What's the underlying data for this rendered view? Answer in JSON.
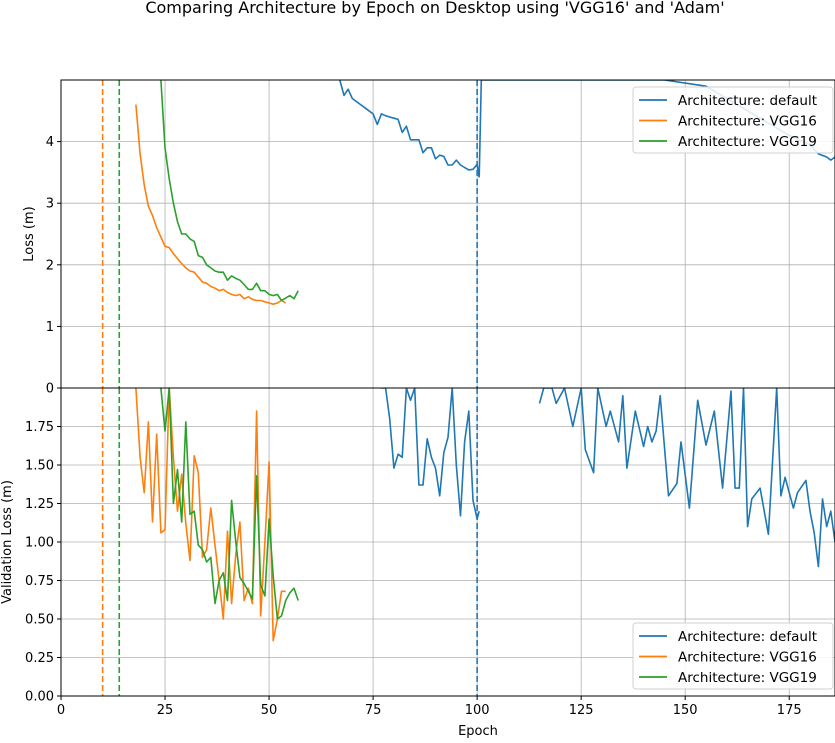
{
  "title": "Comparing Architecture by Epoch on Desktop using 'VGG16' and 'Adam'",
  "chart_data": [
    {
      "panel": "top",
      "type": "line",
      "ylabel": "Loss (m)",
      "xlabel": "",
      "xlim": [
        0,
        186
      ],
      "ylim": [
        0,
        5.0
      ],
      "yticks": [
        0,
        1,
        2,
        3,
        4
      ],
      "xticks": [
        0,
        25,
        50,
        75,
        100,
        125,
        150,
        175
      ],
      "grid": true,
      "legend_position": "top-right",
      "colors": {
        "default": "#1f77b4",
        "VGG16": "#ff7f0e",
        "VGG19": "#2ca02c"
      },
      "series": [
        {
          "name": "Architecture: default",
          "color": "#1f77b4",
          "x": [
            67,
            68,
            69,
            70,
            71,
            72,
            73,
            74,
            75,
            76,
            77,
            78,
            79,
            80,
            81,
            82,
            83,
            84,
            85,
            86,
            87,
            88,
            89,
            90,
            91,
            92,
            93,
            94,
            95,
            96,
            97,
            98,
            99,
            100,
            100.5
          ],
          "y": [
            5.0,
            4.75,
            4.85,
            4.7,
            4.65,
            4.6,
            4.55,
            4.5,
            4.45,
            4.28,
            4.45,
            4.42,
            4.4,
            4.38,
            4.36,
            4.15,
            4.25,
            4.03,
            4.03,
            4.03,
            3.82,
            3.9,
            3.9,
            3.72,
            3.78,
            3.76,
            3.62,
            3.62,
            3.7,
            3.62,
            3.58,
            3.54,
            3.55,
            3.63,
            3.42
          ],
          "x2": [
            100.5,
            101,
            140,
            145,
            150,
            155,
            160,
            165,
            170,
            175,
            180,
            182,
            184,
            185,
            186
          ],
          "y2": [
            3.42,
            5.0,
            5.0,
            5.0,
            4.95,
            4.9,
            4.7,
            4.5,
            4.3,
            4.1,
            3.95,
            3.8,
            3.75,
            3.7,
            3.75
          ]
        },
        {
          "name": "Architecture: VGG16",
          "color": "#ff7f0e",
          "x": [
            18,
            19,
            20,
            21,
            22,
            23,
            24,
            25,
            26,
            27,
            28,
            29,
            30,
            31,
            32,
            33,
            34,
            35,
            36,
            37,
            38,
            39,
            40,
            41,
            42,
            43,
            44,
            45,
            46,
            47,
            48,
            49,
            50,
            51,
            52,
            53,
            54
          ],
          "y": [
            4.6,
            3.8,
            3.3,
            2.95,
            2.8,
            2.6,
            2.45,
            2.3,
            2.28,
            2.18,
            2.1,
            2.02,
            1.95,
            1.9,
            1.88,
            1.8,
            1.72,
            1.7,
            1.65,
            1.62,
            1.58,
            1.6,
            1.55,
            1.52,
            1.5,
            1.52,
            1.45,
            1.48,
            1.44,
            1.42,
            1.42,
            1.4,
            1.38,
            1.36,
            1.38,
            1.42,
            1.38
          ]
        },
        {
          "name": "Architecture: VGG19",
          "color": "#2ca02c",
          "x": [
            24,
            25,
            26,
            27,
            28,
            29,
            30,
            31,
            32,
            33,
            34,
            35,
            36,
            37,
            38,
            39,
            40,
            41,
            42,
            43,
            44,
            45,
            46,
            47,
            48,
            49,
            50,
            51,
            52,
            53,
            54,
            55,
            56,
            57
          ],
          "y": [
            5.0,
            3.9,
            3.4,
            3.0,
            2.7,
            2.5,
            2.5,
            2.42,
            2.38,
            2.15,
            2.12,
            2.0,
            1.95,
            1.9,
            1.88,
            1.88,
            1.75,
            1.82,
            1.78,
            1.75,
            1.68,
            1.6,
            1.6,
            1.7,
            1.58,
            1.58,
            1.52,
            1.5,
            1.52,
            1.42,
            1.46,
            1.5,
            1.45,
            1.58
          ]
        }
      ],
      "vlines": [
        {
          "x": 10,
          "color": "#ff7f0e",
          "style": "dashed"
        },
        {
          "x": 14,
          "color": "#2ca02c",
          "style": "dashed"
        },
        {
          "x": 100,
          "color": "#1f77b4",
          "style": "dashed"
        }
      ]
    },
    {
      "panel": "bottom",
      "type": "line",
      "ylabel": "Validation Loss (m)",
      "xlabel": "Epoch",
      "xlim": [
        0,
        186
      ],
      "ylim": [
        0,
        2.0
      ],
      "yticks": [
        0.0,
        0.25,
        0.5,
        0.75,
        1.0,
        1.25,
        1.5,
        1.75
      ],
      "xticks": [
        0,
        25,
        50,
        75,
        100,
        125,
        150,
        175
      ],
      "grid": true,
      "legend_position": "bottom-right",
      "series": [
        {
          "name": "Architecture: default",
          "color": "#1f77b4",
          "x": [
            77,
            78,
            79,
            80,
            81,
            82,
            83,
            84,
            85,
            86,
            87,
            88,
            89,
            90,
            91,
            92,
            93,
            94,
            95,
            96,
            97,
            98,
            99,
            100,
            100.5
          ],
          "y": [
            2.0,
            2.0,
            1.8,
            1.48,
            1.57,
            1.55,
            2.0,
            1.92,
            2.0,
            1.37,
            1.37,
            1.67,
            1.55,
            1.48,
            1.3,
            1.58,
            1.68,
            2.0,
            1.5,
            1.17,
            1.65,
            1.85,
            1.27,
            1.15,
            1.2
          ],
          "x2": [
            115,
            116,
            118,
            119,
            121,
            123,
            125,
            126,
            128,
            129,
            131,
            132,
            134,
            135,
            136,
            138,
            140,
            141,
            142,
            143,
            144,
            146,
            148,
            149,
            151,
            153,
            155,
            157,
            159,
            161,
            162,
            163,
            164,
            165,
            166,
            168,
            170,
            172,
            173,
            174,
            176,
            177,
            179,
            180,
            181,
            182,
            183,
            184,
            185,
            186
          ],
          "y2": [
            1.9,
            2.0,
            2.0,
            1.9,
            2.0,
            1.75,
            2.0,
            1.6,
            1.45,
            2.0,
            1.75,
            1.85,
            1.65,
            1.95,
            1.48,
            1.85,
            1.62,
            1.75,
            1.65,
            1.72,
            1.95,
            1.3,
            1.38,
            1.65,
            1.22,
            1.92,
            1.63,
            1.85,
            1.35,
            1.98,
            1.35,
            1.35,
            2.0,
            1.1,
            1.28,
            1.35,
            1.05,
            2.0,
            1.3,
            1.42,
            1.22,
            1.32,
            1.4,
            1.2,
            1.06,
            0.84,
            1.28,
            1.1,
            1.2,
            1.0
          ]
        },
        {
          "name": "Architecture: VGG16",
          "color": "#ff7f0e",
          "x": [
            18,
            19,
            20,
            21,
            22,
            23,
            24,
            25,
            26,
            27,
            28,
            29,
            30,
            31,
            32,
            33,
            34,
            35,
            36,
            37,
            38,
            39,
            40,
            41,
            42,
            43,
            44,
            45,
            46,
            47,
            48,
            49,
            50,
            51,
            52,
            53,
            54
          ],
          "y": [
            2.0,
            1.55,
            1.32,
            1.78,
            1.13,
            1.7,
            1.06,
            1.08,
            2.0,
            1.55,
            1.2,
            1.44,
            1.12,
            0.88,
            1.56,
            1.45,
            0.9,
            0.95,
            1.22,
            0.98,
            0.75,
            0.5,
            1.07,
            0.6,
            0.92,
            1.13,
            0.62,
            0.7,
            0.6,
            1.85,
            0.52,
            1.0,
            1.52,
            0.36,
            0.5,
            0.68,
            0.68
          ]
        },
        {
          "name": "Architecture: VGG19",
          "color": "#2ca02c",
          "x": [
            24,
            25,
            26,
            27,
            28,
            29,
            30,
            31,
            32,
            33,
            34,
            35,
            36,
            37,
            38,
            39,
            40,
            41,
            42,
            43,
            44,
            45,
            46,
            47,
            48,
            49,
            50,
            51,
            52,
            53,
            54,
            55,
            56,
            57
          ],
          "y": [
            2.0,
            1.72,
            2.0,
            1.25,
            1.47,
            1.13,
            1.78,
            1.18,
            1.2,
            0.98,
            0.95,
            0.87,
            0.9,
            0.6,
            0.75,
            0.8,
            0.62,
            1.27,
            1.0,
            0.77,
            0.73,
            0.68,
            0.63,
            1.43,
            0.72,
            0.65,
            1.15,
            0.78,
            0.5,
            0.52,
            0.62,
            0.67,
            0.7,
            0.62
          ]
        }
      ],
      "vlines": [
        {
          "x": 10,
          "color": "#ff7f0e",
          "style": "dashed"
        },
        {
          "x": 14,
          "color": "#2ca02c",
          "style": "dashed"
        },
        {
          "x": 100,
          "color": "#1f77b4",
          "style": "dashed"
        }
      ]
    }
  ],
  "legend": {
    "entries": [
      {
        "label": "Architecture: default",
        "color": "#1f77b4"
      },
      {
        "label": "Architecture: VGG16",
        "color": "#ff7f0e"
      },
      {
        "label": "Architecture: VGG19",
        "color": "#2ca02c"
      }
    ]
  }
}
